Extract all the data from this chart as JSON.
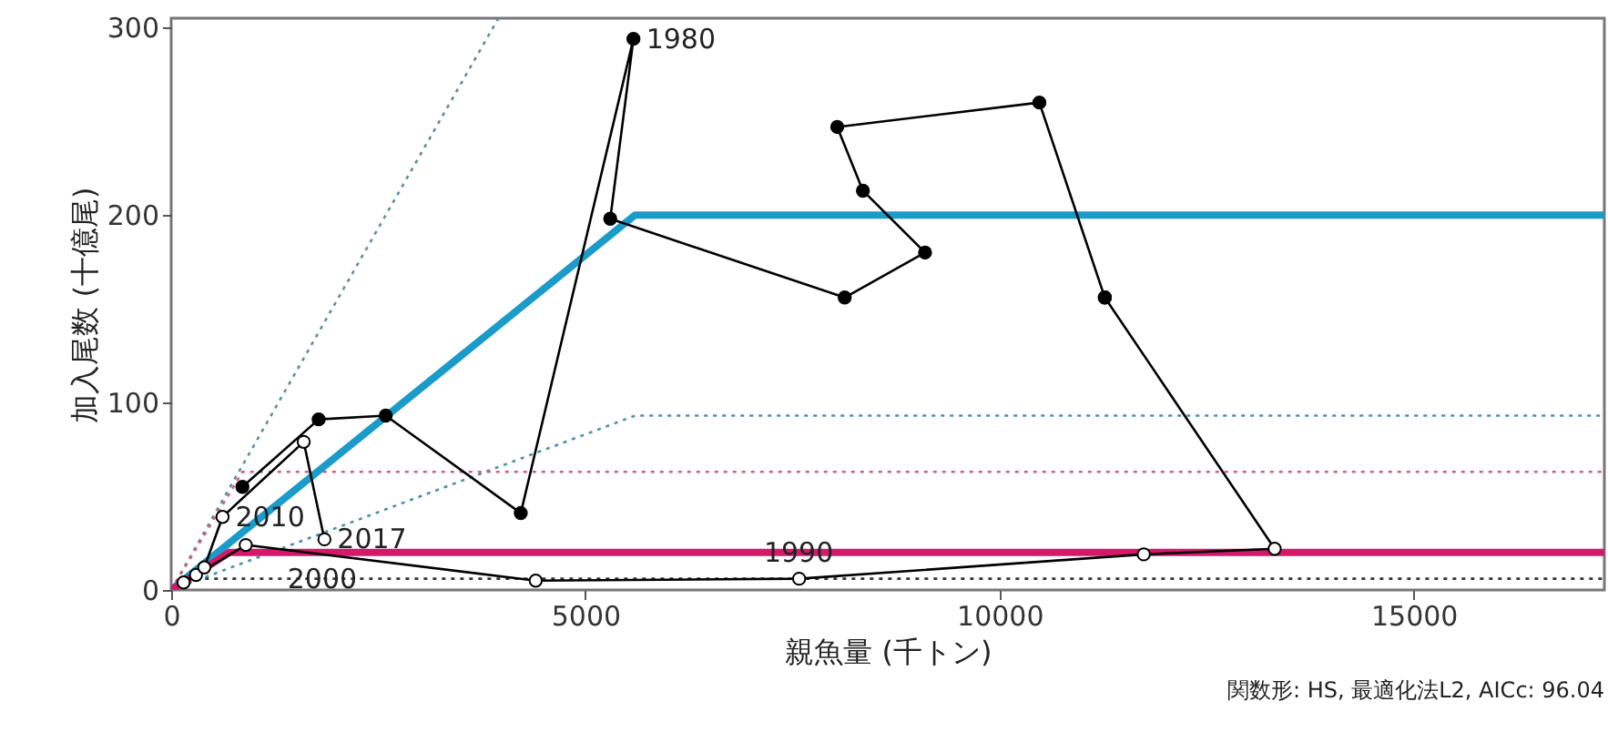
{
  "chart_data": {
    "type": "line",
    "xlabel": "親魚量 (千トン)",
    "ylabel": "加入尾数 (十億尾)",
    "xlim": [
      0,
      17300
    ],
    "ylim": [
      0,
      305
    ],
    "xticks": [
      0,
      5000,
      10000,
      15000
    ],
    "yticks": [
      0,
      100,
      200,
      300
    ],
    "grid": false,
    "series": [
      {
        "color": "#5b8f9c",
        "line_style": "dotted",
        "marker": "none",
        "x": [
          0,
          3950
        ],
        "values": [
          0,
          305
        ]
      },
      {
        "color": "#4a90b0",
        "line_style": "dotted",
        "marker": "none",
        "x": [
          0,
          5600,
          17300
        ],
        "values": [
          0,
          93,
          93
        ]
      },
      {
        "color": "#d0607a",
        "line_style": "dotted",
        "marker": "none",
        "x": [
          0,
          860,
          17300
        ],
        "values": [
          0,
          63,
          63
        ]
      },
      {
        "color": "#333333",
        "line_style": "dotted",
        "marker": "none",
        "x": [
          0,
          300,
          17300
        ],
        "values": [
          0,
          6,
          6
        ]
      },
      {
        "color": "#1a9bc9",
        "line_style": "solid",
        "marker": "none",
        "x": [
          0,
          5600,
          17300
        ],
        "values": [
          0,
          200,
          200
        ]
      },
      {
        "color": "#d6186b",
        "line_style": "solid",
        "marker": "none",
        "x": [
          0,
          700,
          17300
        ],
        "values": [
          0,
          20,
          20
        ]
      },
      {
        "color": "#000000",
        "line_style": "solid",
        "marker": "circle",
        "x": [
          860,
          1780,
          2590,
          4220,
          5580,
          5300,
          8130,
          9100,
          8350,
          8040,
          10480,
          11270
        ],
        "values": [
          55,
          91,
          93,
          41,
          294,
          198,
          156,
          180,
          213,
          247,
          260,
          156
        ]
      },
      {
        "color": "#000000",
        "line_style": "solid",
        "marker": "circle",
        "x": [
          11270,
          13320,
          11740,
          7580,
          4400,
          900,
          300,
          150,
          400,
          620,
          1600,
          1850
        ],
        "values": [
          156,
          22,
          19,
          6,
          5,
          24,
          8,
          4,
          12,
          39,
          79,
          27
        ]
      }
    ],
    "annotations": [
      {
        "text": "1980",
        "x": 5580,
        "y": 294
      },
      {
        "text": "1990",
        "x": 7000,
        "y": 20
      },
      {
        "text": "2000",
        "x": 1250,
        "y": 6
      },
      {
        "text": "2010",
        "x": 620,
        "y": 39
      },
      {
        "text": "2017",
        "x": 1850,
        "y": 27
      },
      "関数形: HS, 最適化法L2, AICc: 96.04"
    ]
  }
}
